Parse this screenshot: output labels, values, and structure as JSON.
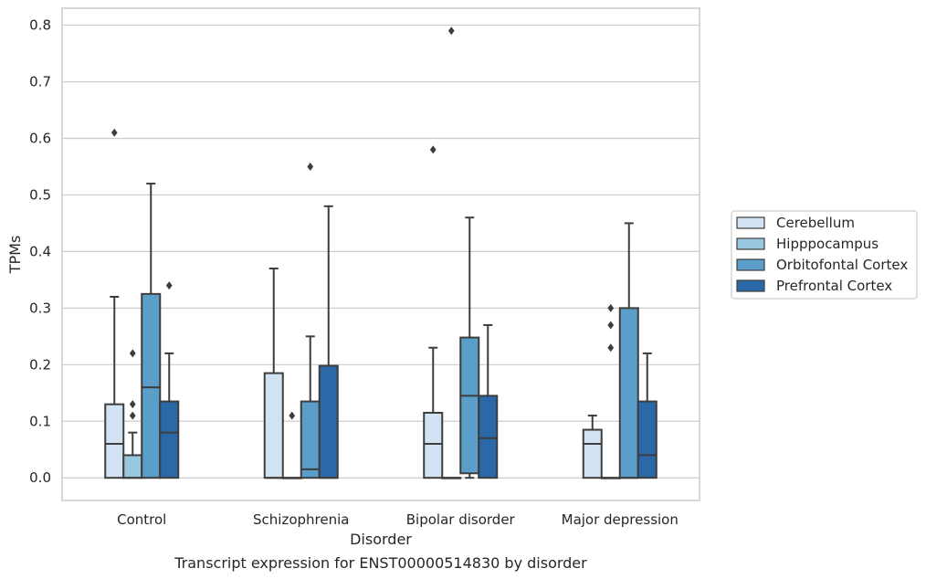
{
  "chart_data": {
    "type": "box",
    "caption": "Transcript expression for ENST00000514830 by disorder",
    "xlabel": "Disorder",
    "ylabel": "TPMs",
    "ylim": [
      -0.04,
      0.83
    ],
    "yticks": [
      0.0,
      0.1,
      0.2,
      0.3,
      0.4,
      0.5,
      0.6,
      0.7,
      0.8
    ],
    "ytick_labels": [
      "0.0",
      "0.1",
      "0.2",
      "0.3",
      "0.4",
      "0.5",
      "0.6",
      "0.7",
      "0.8"
    ],
    "grid": "horizontal",
    "legend_position": "right",
    "categories": [
      "Control",
      "Schizophrenia",
      "Bipolar disorder",
      "Major depression"
    ],
    "series": [
      {
        "name": "Cerebellum",
        "color": "#d1e2f2",
        "boxes": [
          {
            "q1": 0.0,
            "median": 0.06,
            "q3": 0.13,
            "whisker_low": 0.0,
            "whisker_high": 0.32,
            "outliers": [
              0.61
            ]
          },
          {
            "q1": 0.0,
            "median": 0.0,
            "q3": 0.185,
            "whisker_low": 0.0,
            "whisker_high": 0.37,
            "outliers": []
          },
          {
            "q1": 0.0,
            "median": 0.06,
            "q3": 0.115,
            "whisker_low": 0.0,
            "whisker_high": 0.23,
            "outliers": [
              0.58
            ]
          },
          {
            "q1": 0.0,
            "median": 0.06,
            "q3": 0.085,
            "whisker_low": 0.0,
            "whisker_high": 0.11,
            "outliers": []
          }
        ]
      },
      {
        "name": "Hipppocampus",
        "color": "#9ac7e0",
        "boxes": [
          {
            "q1": 0.0,
            "median": 0.0,
            "q3": 0.04,
            "whisker_low": 0.0,
            "whisker_high": 0.08,
            "outliers": [
              0.11,
              0.13,
              0.22
            ]
          },
          {
            "q1": 0.0,
            "median": 0.0,
            "q3": 0.0,
            "whisker_low": 0.0,
            "whisker_high": 0.0,
            "outliers": [
              0.11
            ]
          },
          {
            "q1": 0.0,
            "median": 0.0,
            "q3": 0.0,
            "whisker_low": 0.0,
            "whisker_high": 0.0,
            "outliers": [
              0.79
            ]
          },
          {
            "q1": 0.0,
            "median": 0.0,
            "q3": 0.0,
            "whisker_low": 0.0,
            "whisker_high": 0.0,
            "outliers": [
              0.23,
              0.27,
              0.3
            ]
          }
        ]
      },
      {
        "name": "Orbitofontal Cortex",
        "color": "#5a9ec9",
        "boxes": [
          {
            "q1": 0.0,
            "median": 0.16,
            "q3": 0.325,
            "whisker_low": 0.0,
            "whisker_high": 0.52,
            "outliers": []
          },
          {
            "q1": 0.0,
            "median": 0.015,
            "q3": 0.135,
            "whisker_low": 0.0,
            "whisker_high": 0.25,
            "outliers": [
              0.55
            ]
          },
          {
            "q1": 0.008,
            "median": 0.145,
            "q3": 0.248,
            "whisker_low": 0.0,
            "whisker_high": 0.46,
            "outliers": []
          },
          {
            "q1": 0.0,
            "median": 0.0,
            "q3": 0.3,
            "whisker_low": 0.0,
            "whisker_high": 0.45,
            "outliers": []
          }
        ]
      },
      {
        "name": "Prefrontal Cortex",
        "color": "#2a68a8",
        "boxes": [
          {
            "q1": 0.0,
            "median": 0.08,
            "q3": 0.135,
            "whisker_low": 0.0,
            "whisker_high": 0.22,
            "outliers": [
              0.34
            ]
          },
          {
            "q1": 0.0,
            "median": 0.0,
            "q3": 0.198,
            "whisker_low": 0.0,
            "whisker_high": 0.48,
            "outliers": []
          },
          {
            "q1": 0.0,
            "median": 0.07,
            "q3": 0.145,
            "whisker_low": 0.0,
            "whisker_high": 0.27,
            "outliers": []
          },
          {
            "q1": 0.0,
            "median": 0.04,
            "q3": 0.135,
            "whisker_low": 0.0,
            "whisker_high": 0.22,
            "outliers": []
          }
        ]
      }
    ]
  }
}
